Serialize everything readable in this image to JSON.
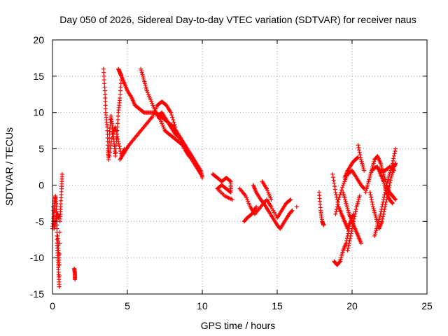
{
  "chart_data": {
    "type": "scatter",
    "title": "Day 050 of 2026, Sidereal Day-to-day VTEC variation (SDTVAR) for receiver naus",
    "xlabel": "GPS time / hours",
    "ylabel": "SDTVAR / TECUs",
    "xlim": [
      0,
      25
    ],
    "ylim": [
      -15,
      20
    ],
    "xticks": [
      0,
      5,
      10,
      15,
      20,
      25
    ],
    "yticks": [
      -15,
      -10,
      -5,
      0,
      5,
      10,
      15,
      20
    ],
    "grid": true,
    "marker": "+",
    "colors": {
      "series": "#ff0000",
      "grid": "#a0a0a0",
      "axis": "#000000"
    },
    "series": [
      {
        "name": "SDTVAR",
        "tracks": [
          {
            "x": [
              0.0,
              0.1,
              0.15,
              0.2,
              0.25,
              0.3,
              0.3,
              0.35,
              0.4,
              0.45,
              0.5,
              0.55,
              0.6,
              0.65
            ],
            "y": [
              -6,
              -4,
              -2.5,
              -1.5,
              -3,
              -5,
              -8,
              -10,
              -12,
              -14,
              -5,
              -3,
              -0.5,
              1.5
            ]
          },
          {
            "x": [
              0.05,
              0.1,
              0.2,
              0.3,
              0.35,
              0.4
            ],
            "y": [
              -3,
              -6,
              -5,
              -4,
              -4,
              -4.5
            ]
          },
          {
            "x": [
              0.35,
              0.4,
              0.45
            ],
            "y": [
              -7,
              -9,
              -11
            ]
          },
          {
            "x": [
              1.45,
              1.5,
              1.5
            ],
            "y": [
              -11.5,
              -12.2,
              -13
            ]
          },
          {
            "x": [
              3.4,
              3.5,
              3.55,
              3.65,
              3.7,
              3.75,
              3.8,
              3.9,
              4.0,
              4.1,
              4.2,
              4.3,
              4.4,
              4.5,
              4.6
            ],
            "y": [
              16,
              13,
              10,
              8,
              5,
              3.5,
              7,
              9.5,
              8,
              6,
              4,
              7,
              10,
              12,
              15
            ]
          },
          {
            "x": [
              3.8,
              4.0,
              4.2,
              4.4,
              4.6,
              4.8
            ],
            "y": [
              4,
              7,
              8,
              6,
              4,
              5
            ]
          },
          {
            "x": [
              4.4,
              4.5,
              4.6,
              4.8,
              5.0,
              5.3,
              5.5,
              5.8,
              6.1,
              6.5,
              6.9,
              7.2,
              7.5,
              7.8,
              8.1,
              8.4,
              8.7,
              9.0,
              9.3,
              9.6,
              9.9,
              10.0
            ],
            "y": [
              16,
              15.5,
              15,
              14,
              13,
              12,
              11,
              10.5,
              10,
              10,
              10,
              9.5,
              9,
              8.5,
              8,
              7,
              6,
              5,
              4,
              3,
              2,
              1
            ]
          },
          {
            "x": [
              4.5,
              4.8,
              5.1,
              5.5,
              5.9,
              6.3,
              6.7,
              7.0,
              7.3,
              7.6,
              7.9,
              8.2
            ],
            "y": [
              3.5,
              4.5,
              5.5,
              6.5,
              7.5,
              8.5,
              9.5,
              11,
              11.5,
              11,
              10,
              8
            ]
          },
          {
            "x": [
              5.9,
              6.1,
              6.3,
              6.6,
              6.9,
              7.2,
              7.5,
              7.8,
              8.1,
              8.4,
              8.7,
              9.0,
              9.3,
              9.6,
              9.9
            ],
            "y": [
              16,
              14.5,
              13,
              11.5,
              10,
              9,
              7.5,
              7,
              6.5,
              6,
              5.5,
              4.5,
              3.5,
              2.5,
              1.5
            ]
          },
          {
            "x": [
              7.0,
              7.3,
              7.6,
              7.9,
              8.2,
              8.5,
              8.8,
              9.1
            ],
            "y": [
              9.5,
              10,
              9,
              8,
              7,
              6.5,
              5,
              4
            ]
          },
          {
            "x": [
              10.7,
              11.0,
              11.3,
              11.6,
              11.9,
              11.9,
              11.6,
              11.3,
              11.0,
              11.5,
              12.0
            ],
            "y": [
              1.5,
              1,
              0.5,
              1,
              0.5,
              -1,
              -0.5,
              0,
              -0.5,
              -1.5,
              -2
            ]
          },
          {
            "x": [
              12.5,
              12.9,
              13.2,
              13.5,
              13.9,
              14.3,
              14.6,
              15.0,
              15.3,
              15.6,
              15.9
            ],
            "y": [
              -0.5,
              -1.5,
              -3,
              -4,
              -3,
              -2,
              -3,
              -4.5,
              -3.5,
              -2.5,
              -2
            ]
          },
          {
            "x": [
              12.8,
              13.0,
              13.3,
              13.6
            ],
            "y": [
              -5,
              -4.5,
              -4,
              -3
            ]
          },
          {
            "x": [
              13.4,
              13.6,
              13.9,
              14.1,
              14.4,
              14.7,
              15.0,
              15.2,
              15.5,
              15.8,
              16.0
            ],
            "y": [
              0,
              -1,
              -2,
              -2.5,
              -3.5,
              -4.5,
              -5.5,
              -6,
              -5,
              -4,
              -3.5
            ]
          },
          {
            "x": [
              14.0,
              14.3,
              14.6
            ],
            "y": [
              0.5,
              -0.5,
              -2
            ]
          },
          {
            "x": [
              16.3
            ],
            "y": [
              -3
            ]
          },
          {
            "x": [
              17.8,
              17.9,
              18.0,
              18.1
            ],
            "y": [
              -1,
              -3.5,
              -5,
              -5.5
            ]
          },
          {
            "x": [
              18.7,
              18.9,
              19.1,
              19.3,
              19.5,
              19.7,
              19.9,
              20.1
            ],
            "y": [
              1.5,
              -1,
              -3,
              -4,
              -5,
              -6,
              -5,
              -4
            ]
          },
          {
            "x": [
              18.8,
              19.0,
              19.2,
              19.4,
              19.6,
              19.8
            ],
            "y": [
              -10.5,
              -11,
              -10.5,
              -9,
              -8,
              -6
            ]
          },
          {
            "x": [
              18.9,
              19.1,
              19.4,
              19.7,
              20.0,
              20.3,
              20.6,
              20.8
            ],
            "y": [
              -4,
              -2,
              0,
              1.5,
              2,
              1,
              0,
              -0.5
            ]
          },
          {
            "x": [
              19.4,
              19.6,
              19.8,
              20.0,
              20.2,
              20.4,
              20.6
            ],
            "y": [
              -1,
              -2.5,
              -4,
              -5,
              -6,
              -7,
              -8
            ]
          },
          {
            "x": [
              19.7,
              19.9,
              20.1,
              20.3,
              20.5
            ],
            "y": [
              -9,
              -7,
              -5,
              -3,
              -1.5
            ]
          },
          {
            "x": [
              19.5,
              19.7,
              20.0,
              20.2,
              20.4
            ],
            "y": [
              1,
              2,
              3,
              3.5,
              3.8
            ]
          },
          {
            "x": [
              20.4,
              20.6,
              20.8
            ],
            "y": [
              5.5,
              3.5,
              2
            ]
          },
          {
            "x": [
              20.9,
              21.1,
              21.3,
              21.5,
              21.7,
              21.9,
              22.1,
              22.3,
              22.5,
              22.7,
              22.9
            ],
            "y": [
              -1,
              0.5,
              2,
              3.5,
              4,
              3,
              1.5,
              0,
              -1,
              -1.5,
              -2
            ]
          },
          {
            "x": [
              21.2,
              21.4,
              21.6,
              21.8,
              22.0,
              22.2,
              22.4,
              22.6,
              22.8,
              22.9
            ],
            "y": [
              -1,
              -3,
              -4.5,
              -6,
              -5,
              -3,
              -1,
              1,
              2.5,
              3
            ]
          },
          {
            "x": [
              21.5,
              21.7,
              21.9,
              22.1,
              22.3,
              22.5,
              22.7,
              22.9
            ],
            "y": [
              -7,
              -5.5,
              -4,
              -2,
              0,
              1.5,
              3,
              5
            ]
          },
          {
            "x": [
              21.7,
              21.9,
              22.1,
              22.3,
              22.5,
              22.7
            ],
            "y": [
              2.5,
              1.5,
              0.5,
              -1,
              -2,
              -2.5
            ]
          },
          {
            "x": [
              21.3,
              21.6,
              21.9,
              22.2,
              22.5,
              22.8
            ],
            "y": [
              2,
              2.5,
              2,
              2,
              2.5,
              2
            ]
          }
        ]
      }
    ]
  }
}
